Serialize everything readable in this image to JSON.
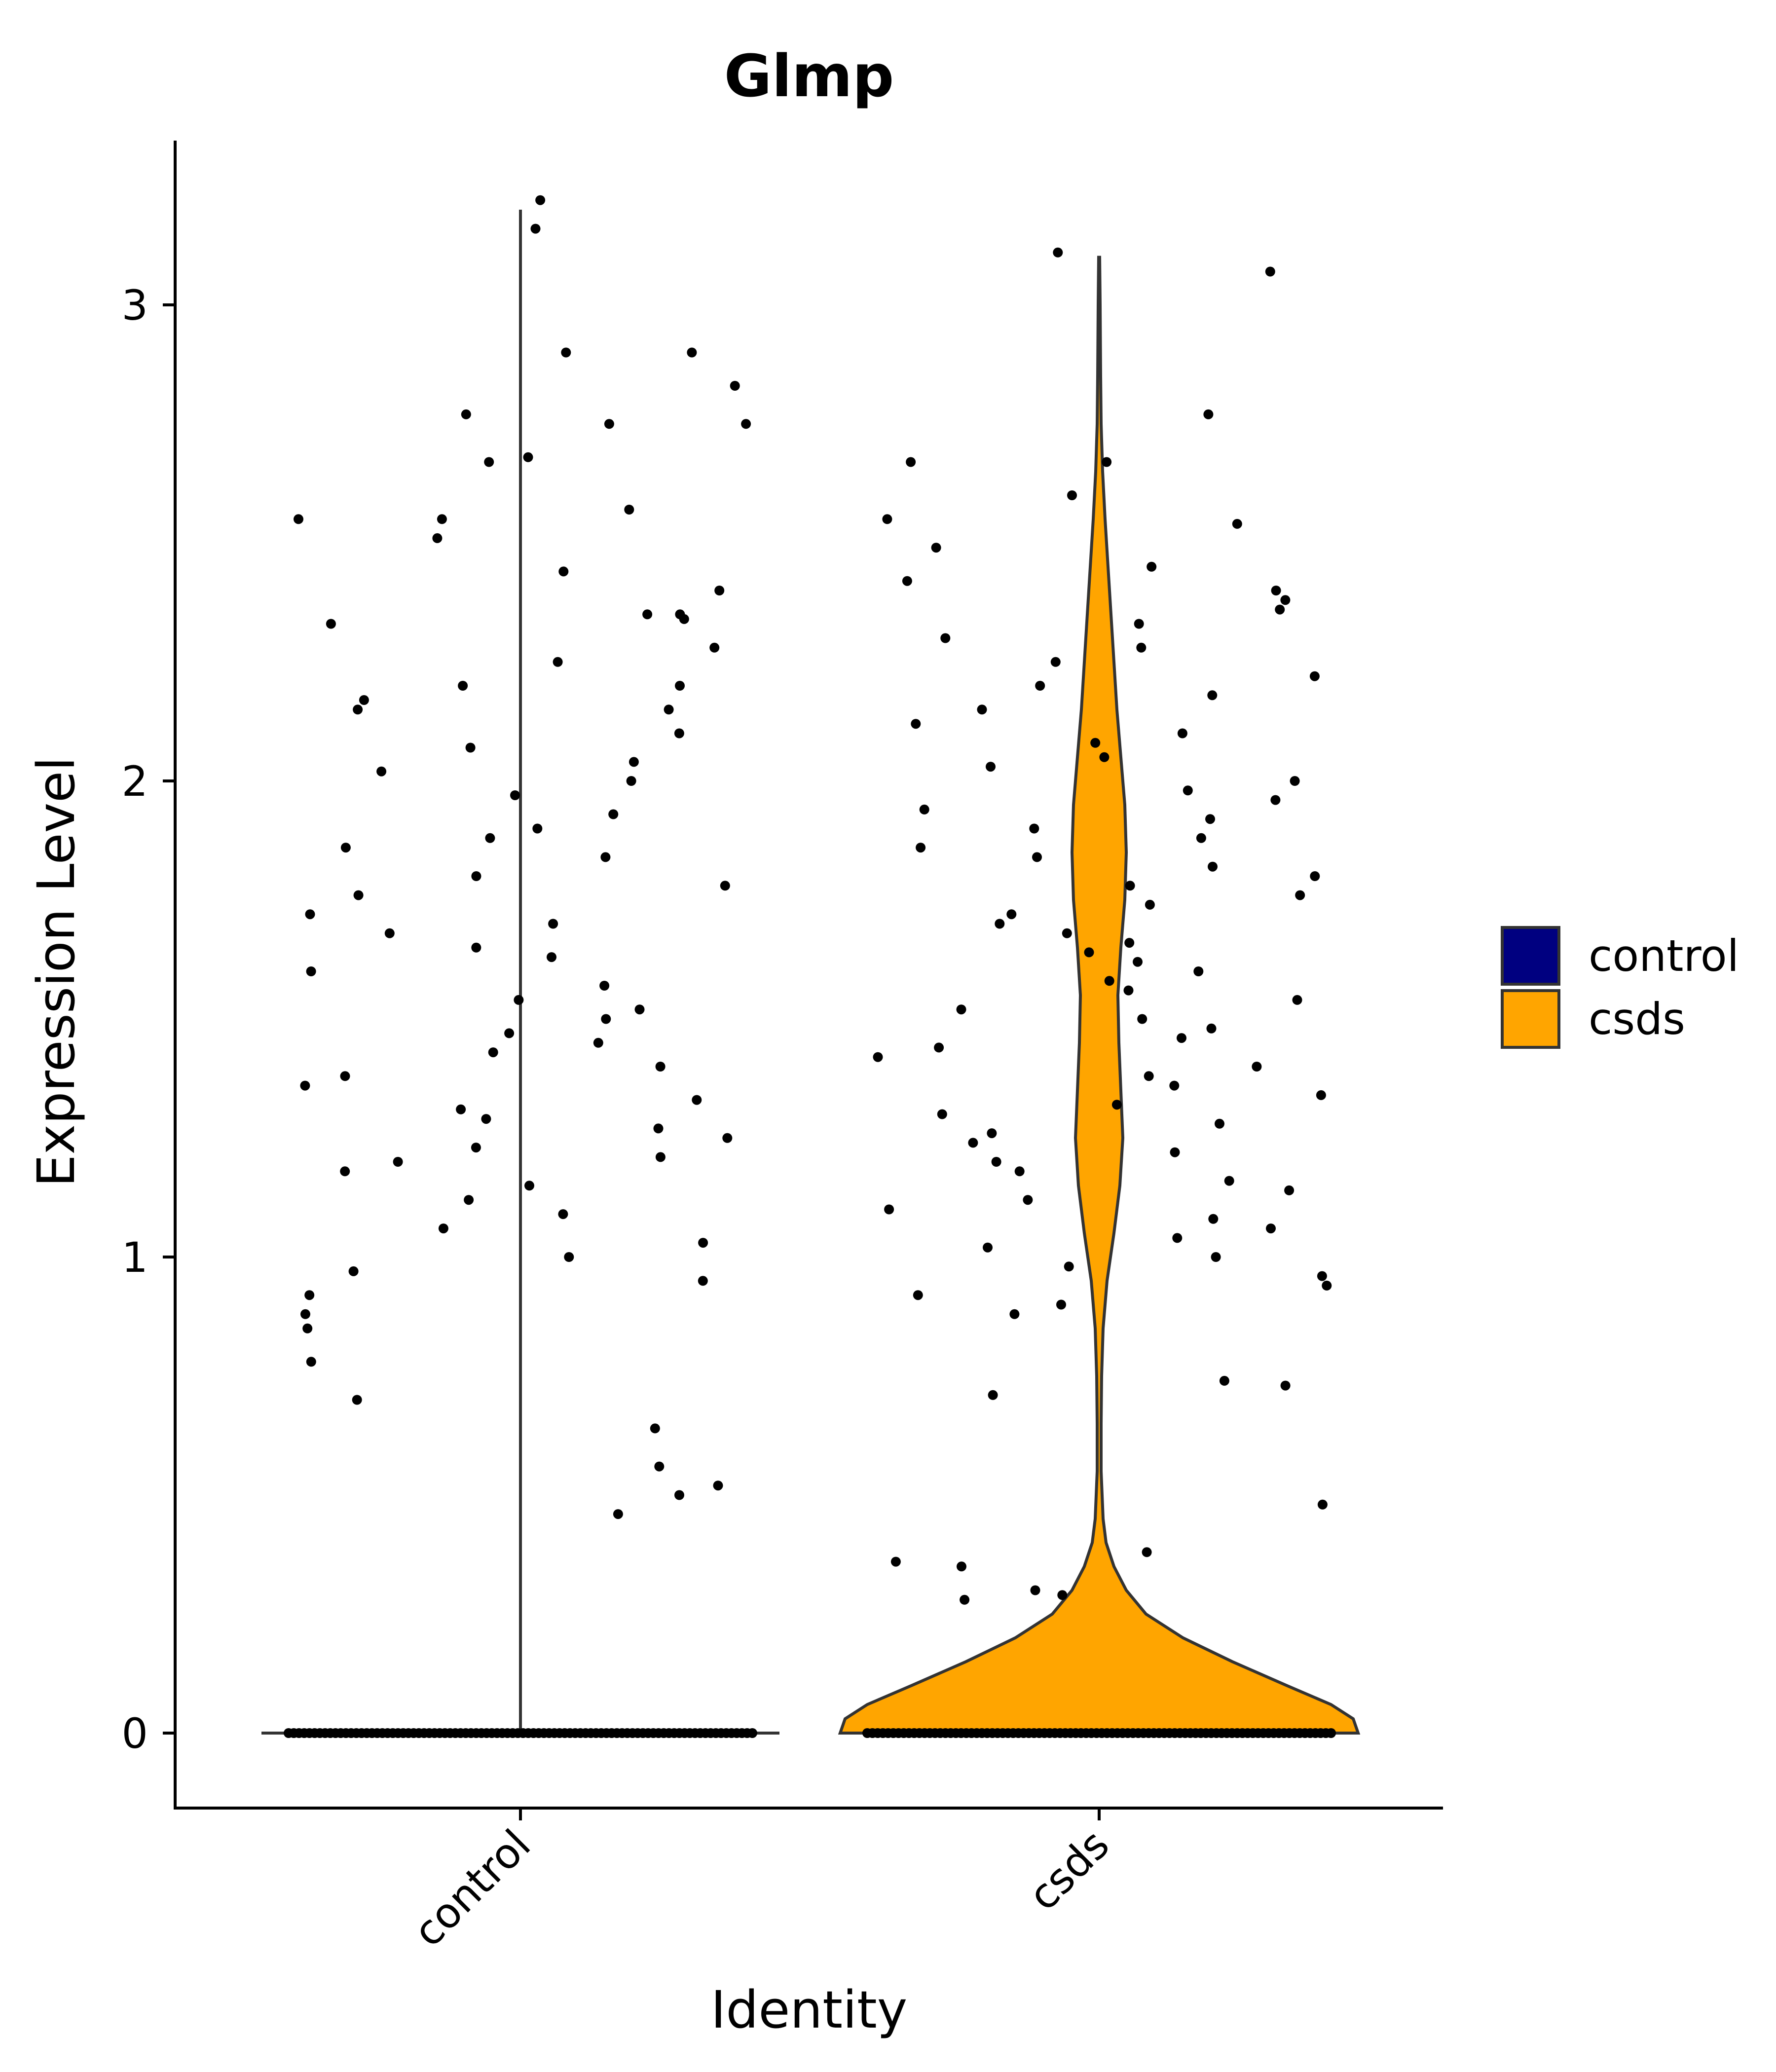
{
  "chart_data": {
    "type": "violin",
    "title": "Glmp",
    "xlabel": "Identity",
    "ylabel": "Expression Level",
    "categories": [
      "control",
      "csds"
    ],
    "ylim": [
      -0.16,
      3.4
    ],
    "yticks": [
      0,
      1,
      2,
      3
    ],
    "colors": {
      "control": "#000080",
      "csds": "#FFA500"
    },
    "legend": {
      "position": "right",
      "entries": [
        "control",
        "csds"
      ]
    },
    "series": [
      {
        "name": "control",
        "max": 3.2,
        "zero_fraction": 0.98,
        "nonzero_points": [
          3.16,
          3.22,
          2.9,
          2.77,
          2.75,
          2.67,
          2.68,
          2.75,
          2.9,
          2.83,
          2.55,
          2.57,
          2.55,
          2.51,
          2.44,
          2.35,
          2.4,
          2.35,
          2.33,
          2.34,
          2.25,
          2.2,
          2.28,
          2.2,
          2.15,
          2.1,
          2.17,
          2.15,
          2.07,
          2.04,
          2.02,
          2.0,
          1.97,
          1.93,
          1.9,
          1.88,
          1.86,
          1.84,
          1.8,
          1.78,
          1.76,
          1.72,
          1.7,
          1.68,
          1.65,
          1.63,
          1.6,
          1.57,
          1.54,
          1.52,
          1.5,
          1.47,
          1.45,
          1.43,
          1.4,
          1.38,
          1.36,
          1.33,
          1.31,
          1.29,
          1.27,
          1.25,
          1.23,
          1.21,
          1.2,
          1.18,
          1.15,
          1.12,
          1.09,
          1.06,
          1.03,
          1.0,
          0.97,
          0.95,
          0.92,
          0.88,
          0.85,
          0.78,
          0.7,
          0.64,
          0.56,
          0.52,
          0.5,
          0.46
        ]
      },
      {
        "name": "csds",
        "max": 3.1,
        "zero_fraction": 0.78,
        "nonzero_points": [
          3.11,
          3.07,
          2.77,
          2.67,
          2.67,
          2.6,
          2.55,
          2.54,
          2.49,
          2.45,
          2.42,
          2.4,
          2.38,
          2.36,
          2.33,
          2.3,
          2.28,
          2.25,
          2.22,
          2.2,
          2.18,
          2.15,
          2.12,
          2.1,
          2.08,
          2.05,
          2.03,
          2.0,
          1.98,
          1.96,
          1.94,
          1.92,
          1.9,
          1.88,
          1.86,
          1.84,
          1.82,
          1.8,
          1.78,
          1.76,
          1.74,
          1.72,
          1.7,
          1.68,
          1.66,
          1.64,
          1.62,
          1.6,
          1.58,
          1.56,
          1.54,
          1.52,
          1.5,
          1.48,
          1.46,
          1.44,
          1.42,
          1.4,
          1.38,
          1.36,
          1.34,
          1.32,
          1.3,
          1.28,
          1.26,
          1.24,
          1.22,
          1.2,
          1.18,
          1.16,
          1.14,
          1.12,
          1.1,
          1.08,
          1.06,
          1.04,
          1.02,
          1.0,
          0.98,
          0.96,
          0.94,
          0.92,
          0.9,
          0.88,
          0.74,
          0.73,
          0.71,
          0.48,
          0.38,
          0.36,
          0.35,
          0.3,
          0.29,
          0.28
        ]
      }
    ]
  }
}
